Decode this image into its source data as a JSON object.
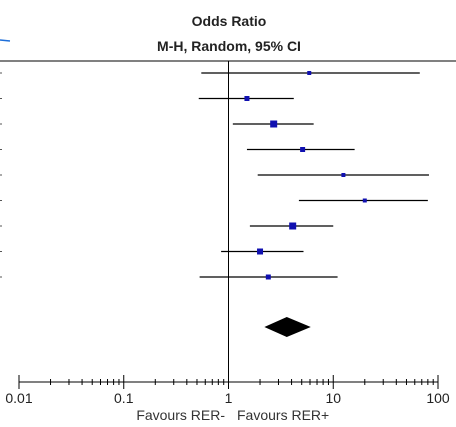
{
  "chart_data": {
    "type": "forest",
    "title": "Odds Ratio",
    "subtitle": "M-H, Random, 95% CI",
    "x_scale": "log",
    "xlim": [
      0.01,
      100
    ],
    "x_ticks": [
      {
        "value": 0.01,
        "label": "0.01"
      },
      {
        "value": 0.1,
        "label": "0.1"
      },
      {
        "value": 1,
        "label": "1"
      },
      {
        "value": 10,
        "label": "10"
      },
      {
        "value": 100,
        "label": "100"
      }
    ],
    "null_value": 1,
    "xlabel_left": "Favours RER-",
    "xlabel_right": "Favours RER+",
    "studies": [
      {
        "or": 5.9,
        "lower": 0.55,
        "upper": 67
      },
      {
        "or": 1.5,
        "lower": 0.52,
        "upper": 4.2
      },
      {
        "or": 2.7,
        "lower": 1.1,
        "upper": 6.5
      },
      {
        "or": 5.1,
        "lower": 1.5,
        "upper": 16
      },
      {
        "or": 12.5,
        "lower": 1.9,
        "upper": 82
      },
      {
        "or": 20,
        "lower": 4.7,
        "upper": 80
      },
      {
        "or": 4.1,
        "lower": 1.6,
        "upper": 10
      },
      {
        "or": 2.0,
        "lower": 0.85,
        "upper": 5.2
      },
      {
        "or": 2.4,
        "lower": 0.53,
        "upper": 11
      }
    ],
    "pooled": {
      "or": 3.6,
      "lower": 2.2,
      "upper": 6.1
    },
    "colors": {
      "marker": "#1010b0",
      "line": "#000000",
      "diamond": "#000000"
    }
  }
}
